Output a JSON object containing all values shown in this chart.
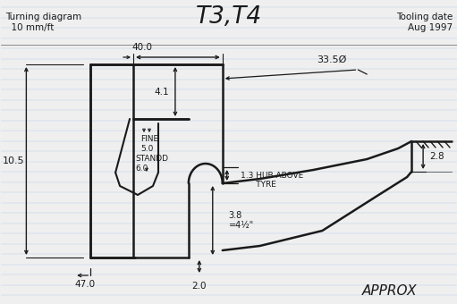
{
  "title_left": "Turning diagram\n  10 mm/ft",
  "title_center": "T3,T4",
  "title_right": "Tooling date\nAug 1997",
  "background_color": "#efefef",
  "line_color": "#1a1a1a",
  "ruled_color": "#b8cfe8",
  "annotations": {
    "dim_40": "40.0",
    "dim_335": "33.5Ø",
    "dim_41": "4.1",
    "dim_13": "1.3 HUB ABOVE\n      TYRE",
    "dim_105": "10.5",
    "dim_28": "2.8",
    "dim_38": "3.8\n=4½\"",
    "dim_20": "2.0",
    "dim_fine": "FINE\n5.0",
    "dim_std": "STANDD\n6.0",
    "dim_470": "47.0",
    "approx": "APPROX"
  },
  "figsize": [
    5.11,
    3.4
  ],
  "dpi": 100
}
